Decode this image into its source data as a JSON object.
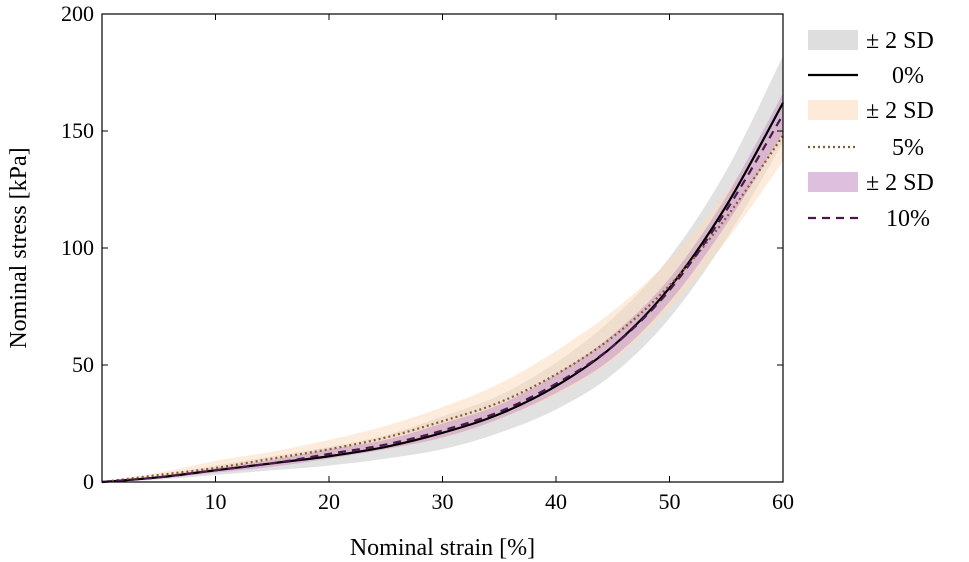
{
  "chart_data": {
    "type": "line",
    "xlabel": "Nominal strain [%]",
    "ylabel": "Nominal stress [kPa]",
    "xlim": [
      0,
      60
    ],
    "ylim": [
      0,
      200
    ],
    "xticks": [
      10,
      20,
      30,
      40,
      50,
      60
    ],
    "yticks": [
      0,
      50,
      100,
      150,
      200
    ],
    "grid": false,
    "legend_position": "outside-right",
    "legend": [
      "± 2 SD",
      "0%",
      "± 2 SD",
      "5%",
      "± 2 SD",
      "10%"
    ],
    "x": [
      0,
      5,
      10,
      15,
      20,
      25,
      30,
      35,
      40,
      45,
      50,
      55,
      60
    ],
    "series": [
      {
        "name": "0%",
        "color": "#000000",
        "line_style": "solid",
        "band_label": "± 2 SD",
        "band_color": "#c8c8c8",
        "values": [
          0,
          2,
          5,
          8,
          11,
          15,
          21,
          29,
          41,
          58,
          83,
          118,
          162
        ],
        "lower": [
          0,
          1,
          3,
          5,
          7,
          10,
          14,
          21,
          31,
          46,
          70,
          104,
          145
        ],
        "upper": [
          0,
          3,
          7,
          11,
          15,
          20,
          28,
          37,
          51,
          70,
          96,
          133,
          182
        ]
      },
      {
        "name": "5%",
        "color": "#8b5a2b",
        "line_style": "dotted",
        "band_label": "± 2 SD",
        "band_color": "#fbdcc0",
        "values": [
          0,
          3,
          6,
          10,
          14,
          19,
          26,
          34,
          46,
          62,
          84,
          113,
          148
        ],
        "lower": [
          0,
          2,
          4,
          7,
          10,
          14,
          19,
          27,
          37,
          52,
          74,
          103,
          137
        ],
        "upper": [
          0,
          4,
          9,
          13,
          18,
          24,
          32,
          42,
          56,
          73,
          95,
          124,
          157
        ]
      },
      {
        "name": "10%",
        "color": "#4a1750",
        "line_style": "dashed",
        "band_label": "± 2 SD",
        "band_color": "#c896c8",
        "values": [
          0,
          2,
          5,
          8,
          12,
          16,
          22,
          30,
          42,
          58,
          82,
          116,
          157
        ],
        "lower": [
          0,
          1.5,
          4,
          6.5,
          10,
          14,
          19,
          27,
          38,
          53,
          77,
          110,
          149
        ],
        "upper": [
          0,
          2.5,
          6,
          9.5,
          14,
          18,
          25,
          33,
          46,
          63,
          87,
          122,
          166
        ]
      }
    ]
  }
}
